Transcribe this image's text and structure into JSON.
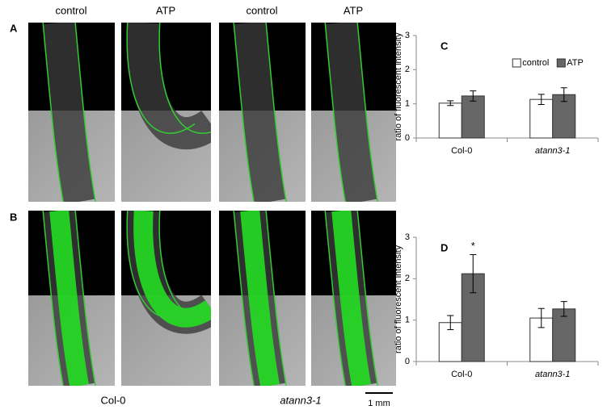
{
  "figure": {
    "column_labels": [
      "control",
      "ATP",
      "control",
      "ATP"
    ],
    "row_labels": [
      "A",
      "B"
    ],
    "genotype_labels": [
      "Col-0",
      "atann3-1"
    ],
    "scale_bar": "1 mm"
  },
  "chart_data": [
    {
      "type": "bar",
      "label": "C",
      "y_label": "ratio of fluorescent intensity",
      "categories": [
        "Col-0",
        "atann3-1"
      ],
      "series": [
        {
          "name": "control",
          "color": "#ffffff",
          "values": [
            1.02,
            1.13
          ],
          "errors": [
            0.07,
            0.15
          ]
        },
        {
          "name": "ATP",
          "color": "#666666",
          "values": [
            1.23,
            1.27
          ],
          "errors": [
            0.15,
            0.2
          ]
        }
      ],
      "ylim": [
        0,
        3
      ],
      "yticks": [
        0,
        1,
        2,
        3
      ],
      "legend": "top-right"
    },
    {
      "type": "bar",
      "label": "D",
      "y_label": "ratio of fluorescent intensity",
      "categories": [
        "Col-0",
        "atann3-1"
      ],
      "series": [
        {
          "color": "#ffffff",
          "values": [
            0.94,
            1.05
          ],
          "errors": [
            0.17,
            0.23
          ]
        },
        {
          "color": "#666666",
          "values": [
            2.12,
            1.27
          ],
          "errors": [
            0.46,
            0.18
          ]
        }
      ],
      "annotations": [
        "*"
      ],
      "ylim": [
        0,
        3
      ],
      "yticks": [
        0,
        1,
        2,
        3
      ]
    }
  ]
}
